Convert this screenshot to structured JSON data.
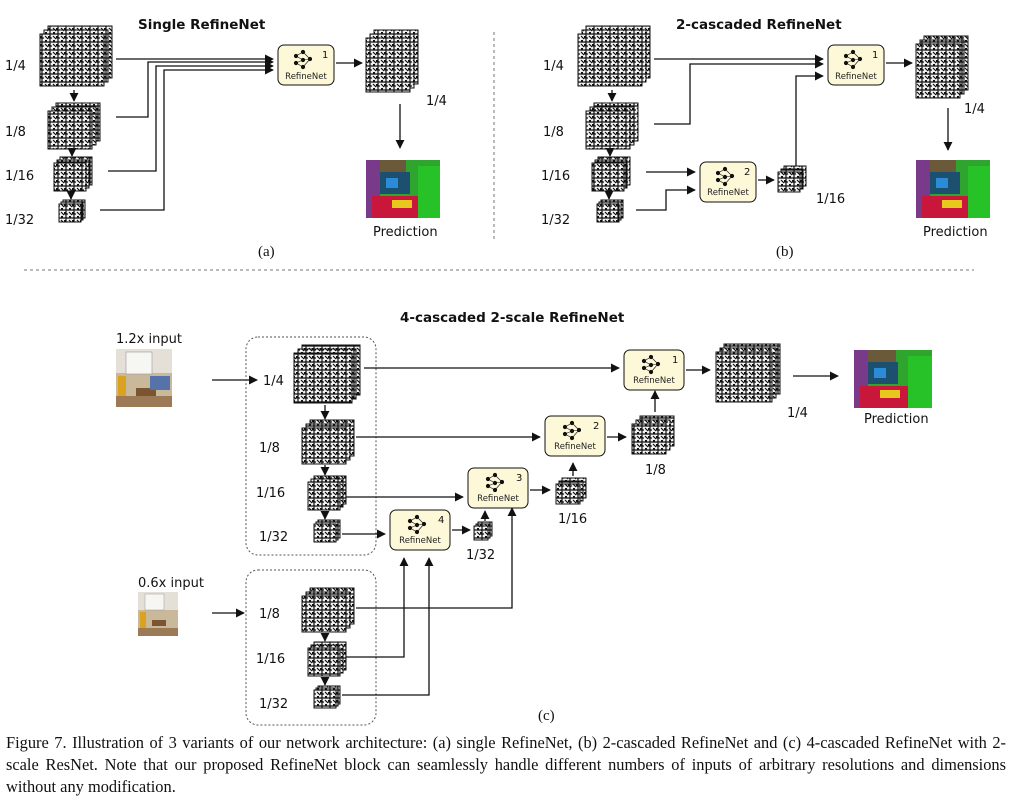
{
  "panels": {
    "a": {
      "title": "Single RefineNet",
      "scales": [
        "1/4",
        "1/8",
        "1/16",
        "1/32"
      ],
      "block": {
        "number": "1",
        "label": "RefineNet"
      },
      "output_scale": "1/4",
      "prediction": "Prediction",
      "sublabel": "(a)"
    },
    "b": {
      "title": "2-cascaded RefineNet",
      "scales": [
        "1/4",
        "1/8",
        "1/16",
        "1/32"
      ],
      "blocks": [
        {
          "number": "1",
          "label": "RefineNet"
        },
        {
          "number": "2",
          "label": "RefineNet"
        }
      ],
      "mid_scale": "1/16",
      "output_scale": "1/4",
      "prediction": "Prediction",
      "sublabel": "(b)"
    },
    "c": {
      "title": "4-cascaded 2-scale RefineNet",
      "input_top": "1.2x input",
      "input_bottom": "0.6x input",
      "top_scales": [
        "1/4",
        "1/8",
        "1/16",
        "1/32"
      ],
      "bottom_scales": [
        "1/8",
        "1/16",
        "1/32"
      ],
      "blocks": [
        {
          "number": "1",
          "label": "RefineNet"
        },
        {
          "number": "2",
          "label": "RefineNet"
        },
        {
          "number": "3",
          "label": "RefineNet"
        },
        {
          "number": "4",
          "label": "RefineNet"
        }
      ],
      "output_scales": [
        "1/4",
        "1/8",
        "1/16",
        "1/32"
      ],
      "prediction": "Prediction",
      "sublabel": "(c)"
    }
  },
  "caption": "Figure 7. Illustration of 3 variants of our network architecture: (a) single RefineNet, (b) 2-cascaded RefineNet and (c) 4-cascaded RefineNet with 2-scale ResNet. Note that our proposed RefineNet block can seamlessly handle different numbers of inputs of arbitrary resolutions and dimensions without any modification."
}
